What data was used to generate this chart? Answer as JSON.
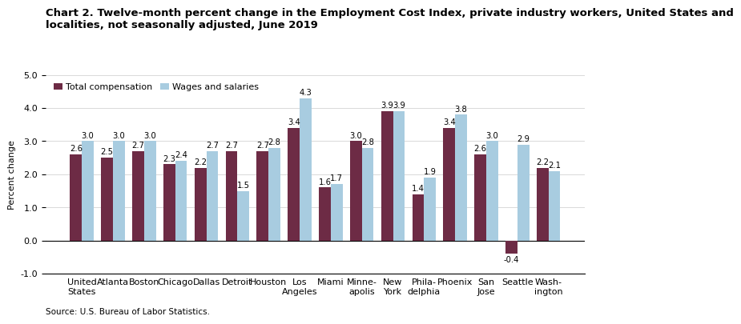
{
  "title_line1": "Chart 2. Twelve-month percent change in the Employment Cost Index, private industry workers, United States and",
  "title_line2": "localities, not seasonally adjusted, June 2019",
  "ylabel": "Percent change",
  "source": "Source: U.S. Bureau of Labor Statistics.",
  "categories": [
    "United\nStates",
    "Atlanta",
    "Boston",
    "Chicago",
    "Dallas",
    "Detroit",
    "Houston",
    "Los\nAngeles",
    "Miami",
    "Minne-\napolis",
    "New\nYork",
    "Phila-\ndelphia",
    "Phoenix",
    "San\nJose",
    "Seattle",
    "Wash-\nington"
  ],
  "total_compensation": [
    2.6,
    2.5,
    2.7,
    2.3,
    2.2,
    2.7,
    2.7,
    3.4,
    1.6,
    3.0,
    3.9,
    1.4,
    3.4,
    2.6,
    -0.4,
    2.2
  ],
  "wages_and_salaries": [
    3.0,
    3.0,
    3.0,
    2.4,
    2.7,
    1.5,
    2.8,
    4.3,
    1.7,
    2.8,
    3.9,
    1.9,
    3.8,
    3.0,
    2.9,
    2.1
  ],
  "color_total": "#6d2b45",
  "color_wages": "#a8cce0",
  "ylim": [
    -1.0,
    5.0
  ],
  "yticks": [
    -1.0,
    0.0,
    1.0,
    2.0,
    3.0,
    4.0,
    5.0
  ],
  "legend_labels": [
    "Total compensation",
    "Wages and salaries"
  ],
  "bar_width": 0.38,
  "title_fontsize": 9.5,
  "label_fontsize": 8,
  "tick_fontsize": 8,
  "value_fontsize": 7.2
}
